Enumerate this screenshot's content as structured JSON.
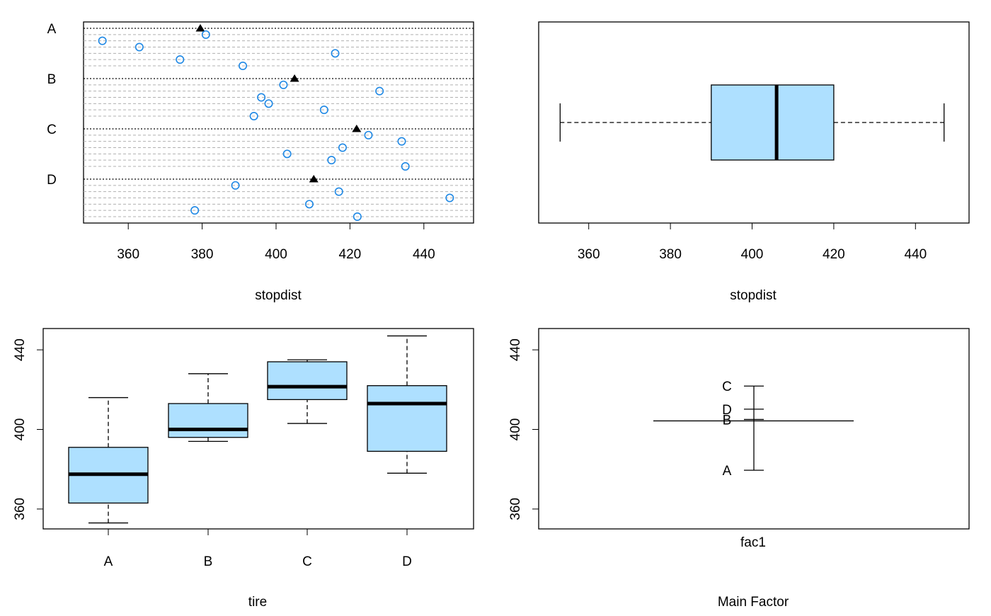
{
  "colors": {
    "point": "#1e88e5",
    "mean_marker": "#000000",
    "box_fill": "#aee0ff",
    "frame": "#000000",
    "dotted_line": "#000000",
    "light_dash": "#b0b0b0"
  },
  "chart_data": [
    {
      "panel": "top-left",
      "type": "scatter",
      "subtype": "grouped dot plot (obs. per group, group means as triangles)",
      "xlabel": "stopdist",
      "xlim": [
        350,
        450
      ],
      "x_ticks": [
        360,
        380,
        400,
        420,
        440
      ],
      "grid": "dashed horizontal line per observation, dotted line per group",
      "groups": [
        {
          "label": "A",
          "mean": 379.5,
          "values": [
            381,
            353,
            363,
            416,
            374,
            391
          ]
        },
        {
          "label": "B",
          "mean": 405,
          "values": [
            402,
            428,
            396,
            398,
            413,
            394
          ]
        },
        {
          "label": "C",
          "mean": 421.8,
          "values": [
            425,
            434,
            418,
            403,
            415,
            435
          ]
        },
        {
          "label": "D",
          "mean": 410.2,
          "values": [
            389,
            417,
            447,
            409,
            378,
            422
          ]
        }
      ]
    },
    {
      "panel": "top-right",
      "type": "box",
      "orientation": "horizontal",
      "xlabel": "stopdist",
      "xlim": [
        350,
        450
      ],
      "x_ticks": [
        360,
        380,
        400,
        420,
        440
      ],
      "box": {
        "min": 353,
        "q1": 390,
        "median": 406,
        "q3": 420,
        "max": 447
      }
    },
    {
      "panel": "bottom-left",
      "type": "box",
      "orientation": "vertical",
      "xlabel": "tire",
      "ylim": [
        350,
        450
      ],
      "y_ticks": [
        360,
        400,
        440
      ],
      "categories": [
        "A",
        "B",
        "C",
        "D"
      ],
      "boxes": [
        {
          "min": 353,
          "q1": 363,
          "median": 377.5,
          "q3": 391,
          "max": 416
        },
        {
          "min": 394,
          "q1": 396,
          "median": 400,
          "q3": 413,
          "max": 428
        },
        {
          "min": 403,
          "q1": 415,
          "median": 421.5,
          "q3": 434,
          "max": 435
        },
        {
          "min": 378,
          "q1": 389,
          "median": 413,
          "q3": 422,
          "max": 447
        }
      ]
    },
    {
      "panel": "bottom-right",
      "type": "main-effects",
      "x_category": "fac1",
      "xlabel": "Main Factor",
      "ylim": [
        350,
        450
      ],
      "y_ticks": [
        360,
        400,
        440
      ],
      "grand_mean": 404.3,
      "levels": [
        {
          "label": "C",
          "mean": 421.8
        },
        {
          "label": "D",
          "mean": 410.2
        },
        {
          "label": "B",
          "mean": 405
        },
        {
          "label": "A",
          "mean": 379.5
        }
      ]
    }
  ]
}
